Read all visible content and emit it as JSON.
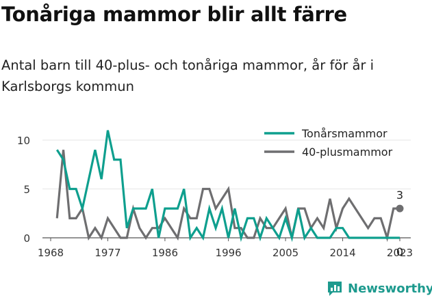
{
  "title": "Tonåriga mammor blir allt färre",
  "subtitle": "Antal barn till 40-plus- och tonåriga mammor, år för år i Karlsborgs kommun",
  "brand": {
    "name": "Newsworthy",
    "icon": "newsworthy-logo-icon",
    "color": "#1d9a8e"
  },
  "chart_data": {
    "type": "line",
    "x": [
      1969,
      1970,
      1971,
      1972,
      1973,
      1974,
      1975,
      1976,
      1977,
      1978,
      1979,
      1980,
      1981,
      1982,
      1983,
      1984,
      1985,
      1986,
      1987,
      1988,
      1989,
      1990,
      1991,
      1992,
      1993,
      1994,
      1995,
      1996,
      1997,
      1998,
      1999,
      2000,
      2001,
      2002,
      2003,
      2004,
      2005,
      2006,
      2007,
      2008,
      2009,
      2010,
      2011,
      2012,
      2013,
      2014,
      2015,
      2016,
      2017,
      2018,
      2019,
      2020,
      2021,
      2022,
      2023
    ],
    "series": [
      {
        "name": "Tonårsmammor",
        "color": "#0e9f8e",
        "values": [
          9,
          8,
          5,
          5,
          3,
          6,
          9,
          6,
          11,
          8,
          8,
          1,
          3,
          3,
          3,
          5,
          0,
          3,
          3,
          3,
          5,
          0,
          1,
          0,
          3,
          1,
          3,
          0,
          3,
          0,
          2,
          2,
          0,
          2,
          1,
          0,
          2,
          0,
          3,
          0,
          1,
          0,
          0,
          0,
          1,
          1,
          0,
          0,
          0,
          0,
          0,
          0,
          0,
          0,
          0
        ]
      },
      {
        "name": "40-plusmammor",
        "color": "#6e6e70",
        "values": [
          2,
          9,
          2,
          2,
          3,
          0,
          1,
          0,
          2,
          1,
          0,
          0,
          3,
          1,
          0,
          1,
          1,
          2,
          1,
          0,
          3,
          2,
          2,
          5,
          5,
          3,
          4,
          5,
          1,
          1,
          0,
          0,
          2,
          1,
          1,
          2,
          3,
          0,
          3,
          3,
          1,
          2,
          1,
          4,
          1,
          3,
          4,
          3,
          2,
          1,
          2,
          2,
          0,
          3,
          3
        ]
      }
    ],
    "x_ticks": [
      "1968",
      "1977",
      "1986",
      "1996",
      "2005",
      "2014",
      "2023"
    ],
    "y_ticks": [
      "0",
      "5",
      "10"
    ],
    "ylim": [
      0,
      11
    ],
    "last_labels": {
      "upper": "3",
      "lower": "0"
    },
    "legend_position": "top-right",
    "grid": "horizontal"
  }
}
